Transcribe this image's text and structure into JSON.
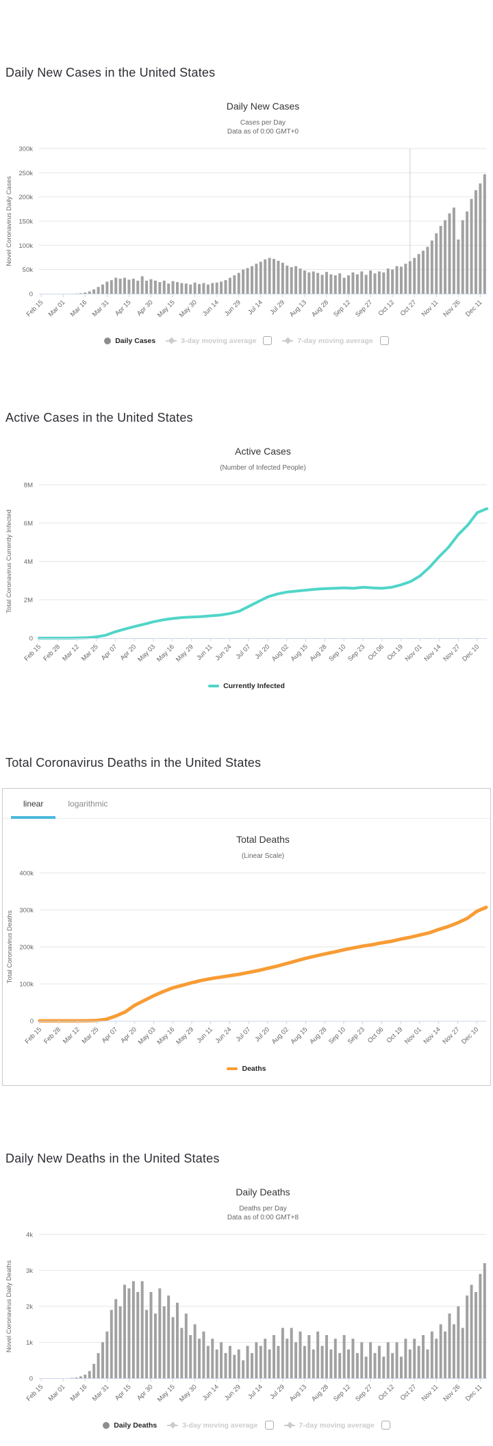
{
  "colors": {
    "grid": "#e6e6e6",
    "axis_line": "#ccd6eb",
    "tick_text": "#666666",
    "bar": "#a1a1a1",
    "active_cases_line": "#50d5c8",
    "deaths_line": "#f89c35",
    "tab_underline": "#4bb9dc",
    "legend_inactive": "#cccccc",
    "vline": "#cccccc"
  },
  "chart_data": [
    {
      "id": "daily-new-cases",
      "type": "bar",
      "heading": "Daily New Cases in the United States",
      "title": "Daily New Cases",
      "subtitle_lines": [
        "Cases per Day",
        "Data as of 0:00 GMT+0"
      ],
      "ylabel": "Novel Coronavirus Daily Cases",
      "value_unit": "thousands of cases per day",
      "y_max": 300,
      "y_ticks": [
        {
          "label": "300k",
          "v": 300
        },
        {
          "label": "250k",
          "v": 250
        },
        {
          "label": "200k",
          "v": 200
        },
        {
          "label": "150k",
          "v": 150
        },
        {
          "label": "100k",
          "v": 100
        },
        {
          "label": "50k",
          "v": 50
        },
        {
          "label": "0",
          "v": 0
        }
      ],
      "x_ticks": [
        {
          "label": "Feb 15",
          "i": 0
        },
        {
          "label": "Mar 01",
          "i": 5
        },
        {
          "label": "Mar 16",
          "i": 10
        },
        {
          "label": "Mar 31",
          "i": 15
        },
        {
          "label": "Apr 15",
          "i": 20
        },
        {
          "label": "Apr 30",
          "i": 25
        },
        {
          "label": "May 15",
          "i": 30
        },
        {
          "label": "May 30",
          "i": 35
        },
        {
          "label": "Jun 14",
          "i": 40
        },
        {
          "label": "Jun 29",
          "i": 45
        },
        {
          "label": "Jul 14",
          "i": 50
        },
        {
          "label": "Jul 29",
          "i": 55
        },
        {
          "label": "Aug 13",
          "i": 60
        },
        {
          "label": "Aug 28",
          "i": 65
        },
        {
          "label": "Sep 12",
          "i": 70
        },
        {
          "label": "Sep 27",
          "i": 75
        },
        {
          "label": "Oct 12",
          "i": 80
        },
        {
          "label": "Oct 27",
          "i": 85
        },
        {
          "label": "Nov 11",
          "i": 90
        },
        {
          "label": "Nov 26",
          "i": 95
        },
        {
          "label": "Dec 11",
          "i": 100
        }
      ],
      "vline_index": 84,
      "series": [
        {
          "name": "Daily Cases",
          "color": "#a1a1a1",
          "values": [
            0,
            0,
            0,
            0,
            0,
            0.1,
            0.1,
            0.2,
            0.5,
            1.2,
            2.5,
            5,
            9,
            14,
            19,
            25,
            28,
            33,
            31,
            33,
            29,
            31,
            27,
            36,
            27,
            30,
            27,
            24,
            27,
            21,
            26,
            24,
            22,
            21,
            19,
            23,
            20,
            22,
            19,
            22,
            23,
            25,
            28,
            33,
            38,
            43,
            50,
            53,
            57,
            62,
            66,
            71,
            74,
            72,
            68,
            64,
            58,
            55,
            57,
            52,
            48,
            44,
            46,
            43,
            39,
            45,
            40,
            38,
            42,
            33,
            38,
            44,
            40,
            46,
            39,
            48,
            42,
            46,
            44,
            52,
            50,
            57,
            56,
            62,
            67,
            74,
            82,
            89,
            97,
            110,
            125,
            140,
            152,
            166,
            178,
            112,
            152,
            170,
            196,
            214,
            228,
            247
          ]
        }
      ],
      "legend": [
        {
          "label": "Daily Cases",
          "marker": "circle",
          "color": "#8d8d8d",
          "active": true,
          "checkbox": false
        },
        {
          "label": "3-day moving average",
          "marker": "diamond",
          "color": "#cccccc",
          "active": false,
          "checkbox": true
        },
        {
          "label": "7-day moving average",
          "marker": "diamond",
          "color": "#cccccc",
          "active": false,
          "checkbox": true
        }
      ]
    },
    {
      "id": "active-cases",
      "type": "line",
      "heading": "Active Cases in the United States",
      "title": "Active Cases",
      "subtitle_lines": [
        "(Number of Infected People)"
      ],
      "ylabel": "Total Coronavirus Currently Infected",
      "value_unit": "millions of people",
      "y_max": 8,
      "stroke_width": 4,
      "y_ticks": [
        {
          "label": "8M",
          "v": 8
        },
        {
          "label": "6M",
          "v": 6
        },
        {
          "label": "4M",
          "v": 4
        },
        {
          "label": "2M",
          "v": 2
        },
        {
          "label": "0",
          "v": 0
        }
      ],
      "x_ticks": [
        {
          "label": "Feb 15",
          "i": 0
        },
        {
          "label": "Feb 28",
          "i": 2
        },
        {
          "label": "Mar 12",
          "i": 4
        },
        {
          "label": "Mar 25",
          "i": 6
        },
        {
          "label": "Apr 07",
          "i": 8
        },
        {
          "label": "Apr 20",
          "i": 10
        },
        {
          "label": "May 03",
          "i": 12
        },
        {
          "label": "May 16",
          "i": 14
        },
        {
          "label": "May 29",
          "i": 16
        },
        {
          "label": "Jun 11",
          "i": 18
        },
        {
          "label": "Jun 24",
          "i": 20
        },
        {
          "label": "Jul 07",
          "i": 22
        },
        {
          "label": "Jul 20",
          "i": 24
        },
        {
          "label": "Aug 02",
          "i": 26
        },
        {
          "label": "Aug 15",
          "i": 28
        },
        {
          "label": "Aug 28",
          "i": 30
        },
        {
          "label": "Sep 10",
          "i": 32
        },
        {
          "label": "Sep 23",
          "i": 34
        },
        {
          "label": "Oct 06",
          "i": 36
        },
        {
          "label": "Oct 19",
          "i": 38
        },
        {
          "label": "Nov 01",
          "i": 40
        },
        {
          "label": "Nov 14",
          "i": 42
        },
        {
          "label": "Nov 27",
          "i": 44
        },
        {
          "label": "Dec 10",
          "i": 46
        }
      ],
      "series": [
        {
          "name": "Currently Infected",
          "color": "#50d5c8",
          "values": [
            0,
            0,
            0,
            0,
            0.01,
            0.02,
            0.06,
            0.15,
            0.33,
            0.47,
            0.6,
            0.72,
            0.85,
            0.95,
            1.02,
            1.07,
            1.1,
            1.12,
            1.16,
            1.2,
            1.28,
            1.4,
            1.65,
            1.9,
            2.15,
            2.3,
            2.4,
            2.45,
            2.5,
            2.55,
            2.58,
            2.6,
            2.62,
            2.6,
            2.65,
            2.62,
            2.6,
            2.65,
            2.78,
            2.95,
            3.25,
            3.7,
            4.25,
            4.75,
            5.4,
            5.9,
            6.55,
            6.75
          ]
        }
      ],
      "legend": [
        {
          "label": "Currently Infected",
          "marker": "line",
          "color": "#50d5c8",
          "active": true,
          "checkbox": false
        }
      ]
    },
    {
      "id": "total-deaths",
      "type": "line",
      "heading": "Total Coronavirus Deaths in the United States",
      "title": "Total Deaths",
      "subtitle_lines": [
        "(Linear Scale)"
      ],
      "ylabel": "Total Coronavirus Deaths",
      "value_unit": "thousands of deaths",
      "tabs": {
        "items": [
          "linear",
          "logarithmic"
        ],
        "active": "linear"
      },
      "y_max": 400,
      "stroke_width": 5,
      "y_ticks": [
        {
          "label": "400k",
          "v": 400
        },
        {
          "label": "300k",
          "v": 300
        },
        {
          "label": "200k",
          "v": 200
        },
        {
          "label": "100k",
          "v": 100
        },
        {
          "label": "0",
          "v": 0
        }
      ],
      "x_ticks": [
        {
          "label": "Feb 15",
          "i": 0
        },
        {
          "label": "Feb 28",
          "i": 2
        },
        {
          "label": "Mar 12",
          "i": 4
        },
        {
          "label": "Mar 25",
          "i": 6
        },
        {
          "label": "Apr 07",
          "i": 8
        },
        {
          "label": "Apr 20",
          "i": 10
        },
        {
          "label": "May 03",
          "i": 12
        },
        {
          "label": "May 16",
          "i": 14
        },
        {
          "label": "May 29",
          "i": 16
        },
        {
          "label": "Jun 11",
          "i": 18
        },
        {
          "label": "Jun 24",
          "i": 20
        },
        {
          "label": "Jul 07",
          "i": 22
        },
        {
          "label": "Jul 20",
          "i": 24
        },
        {
          "label": "Aug 02",
          "i": 26
        },
        {
          "label": "Aug 15",
          "i": 28
        },
        {
          "label": "Aug 28",
          "i": 30
        },
        {
          "label": "Sep 10",
          "i": 32
        },
        {
          "label": "Sep 23",
          "i": 34
        },
        {
          "label": "Oct 06",
          "i": 36
        },
        {
          "label": "Oct 19",
          "i": 38
        },
        {
          "label": "Nov 01",
          "i": 40
        },
        {
          "label": "Nov 14",
          "i": 42
        },
        {
          "label": "Nov 27",
          "i": 44
        },
        {
          "label": "Dec 10",
          "i": 46
        }
      ],
      "series": [
        {
          "name": "Deaths",
          "color": "#f89c35",
          "values": [
            0,
            0,
            0,
            0,
            0.05,
            0.2,
            0.9,
            4,
            13,
            24,
            42,
            55,
            68,
            79,
            89,
            96,
            103,
            109,
            114,
            118,
            122,
            126,
            131,
            136,
            142,
            148,
            155,
            162,
            169,
            175,
            181,
            186,
            192,
            197,
            202,
            206,
            211,
            215,
            221,
            226,
            232,
            238,
            247,
            255,
            265,
            277,
            296,
            307
          ]
        }
      ],
      "legend": [
        {
          "label": "Deaths",
          "marker": "line",
          "color": "#f89c35",
          "active": true,
          "checkbox": false
        }
      ]
    },
    {
      "id": "daily-new-deaths",
      "type": "bar",
      "heading": "Daily New Deaths in the United States",
      "title": "Daily Deaths",
      "subtitle_lines": [
        "Deaths per Day",
        "Data as of 0:00 GMT+8"
      ],
      "ylabel": "Novel Coronavirus Daily Deaths",
      "value_unit": "thousands of deaths per day",
      "y_max": 4,
      "y_ticks": [
        {
          "label": "4k",
          "v": 4
        },
        {
          "label": "3k",
          "v": 3
        },
        {
          "label": "2k",
          "v": 2
        },
        {
          "label": "1k",
          "v": 1
        },
        {
          "label": "0",
          "v": 0
        }
      ],
      "x_ticks": [
        {
          "label": "Feb 15",
          "i": 0
        },
        {
          "label": "Mar 01",
          "i": 5
        },
        {
          "label": "Mar 16",
          "i": 10
        },
        {
          "label": "Mar 31",
          "i": 15
        },
        {
          "label": "Apr 15",
          "i": 20
        },
        {
          "label": "Apr 30",
          "i": 25
        },
        {
          "label": "May 15",
          "i": 30
        },
        {
          "label": "May 30",
          "i": 35
        },
        {
          "label": "Jun 14",
          "i": 40
        },
        {
          "label": "Jun 29",
          "i": 45
        },
        {
          "label": "Jul 14",
          "i": 50
        },
        {
          "label": "Jul 29",
          "i": 55
        },
        {
          "label": "Aug 13",
          "i": 60
        },
        {
          "label": "Aug 28",
          "i": 65
        },
        {
          "label": "Sep 12",
          "i": 70
        },
        {
          "label": "Sep 27",
          "i": 75
        },
        {
          "label": "Oct 12",
          "i": 80
        },
        {
          "label": "Oct 27",
          "i": 85
        },
        {
          "label": "Nov 11",
          "i": 90
        },
        {
          "label": "Nov 26",
          "i": 95
        },
        {
          "label": "Dec 11",
          "i": 100
        }
      ],
      "series": [
        {
          "name": "Daily Deaths",
          "color": "#a1a1a1",
          "values": [
            0,
            0,
            0,
            0,
            0,
            0,
            0,
            0.01,
            0.02,
            0.05,
            0.1,
            0.2,
            0.4,
            0.7,
            1.0,
            1.3,
            1.9,
            2.2,
            2.0,
            2.6,
            2.5,
            2.7,
            2.4,
            2.7,
            1.9,
            2.4,
            1.8,
            2.5,
            2.0,
            2.3,
            1.7,
            2.1,
            1.4,
            1.8,
            1.2,
            1.5,
            1.1,
            1.3,
            0.9,
            1.1,
            0.8,
            1.0,
            0.7,
            0.9,
            0.65,
            0.8,
            0.5,
            0.9,
            0.7,
            1.0,
            0.9,
            1.1,
            0.8,
            1.2,
            0.9,
            1.4,
            1.1,
            1.4,
            1.0,
            1.3,
            0.9,
            1.2,
            0.8,
            1.3,
            0.9,
            1.2,
            0.8,
            1.1,
            0.7,
            1.2,
            0.8,
            1.1,
            0.7,
            1.0,
            0.6,
            1.0,
            0.7,
            0.9,
            0.6,
            1.0,
            0.7,
            1.0,
            0.6,
            1.1,
            0.8,
            1.1,
            0.9,
            1.2,
            0.8,
            1.3,
            1.1,
            1.5,
            1.3,
            1.8,
            1.5,
            2.0,
            1.4,
            2.3,
            2.6,
            2.4,
            2.9,
            3.2
          ]
        }
      ],
      "legend": [
        {
          "label": "Daily Deaths",
          "marker": "circle",
          "color": "#8d8d8d",
          "active": true,
          "checkbox": false
        },
        {
          "label": "3-day moving average",
          "marker": "diamond",
          "color": "#cccccc",
          "active": false,
          "checkbox": true
        },
        {
          "label": "7-day moving average",
          "marker": "diamond",
          "color": "#cccccc",
          "active": false,
          "checkbox": true
        }
      ]
    }
  ]
}
